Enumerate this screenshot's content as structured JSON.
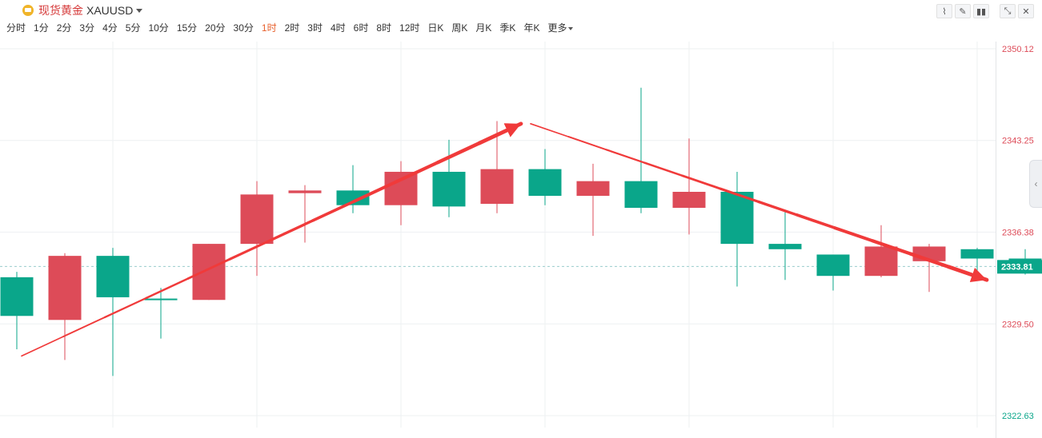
{
  "header": {
    "symbol_name": "现货黄金",
    "symbol_code": "XAUUSD",
    "gold_icon": "gold-coin-icon",
    "tools": [
      {
        "name": "indicator-icon",
        "glyph": "⌇"
      },
      {
        "name": "draw-icon",
        "glyph": "✎"
      },
      {
        "name": "candle-style-icon",
        "glyph": "▮▮"
      },
      {
        "name": "shrink-icon",
        "glyph": "⤡"
      },
      {
        "name": "close-icon",
        "glyph": "✕"
      }
    ]
  },
  "periods": [
    "分时",
    "1分",
    "2分",
    "3分",
    "4分",
    "5分",
    "10分",
    "15分",
    "20分",
    "30分",
    "1时",
    "2时",
    "3时",
    "4时",
    "6时",
    "8时",
    "12时",
    "日K",
    "周K",
    "月K",
    "季K",
    "年K"
  ],
  "active_period": "1时",
  "more_label": "更多",
  "colors": {
    "up": "#dd4b58",
    "down": "#0aa68a",
    "arrow": "#f03a3a",
    "price_line": "#9cc",
    "grid": "#eef0f2"
  },
  "chart_data": {
    "type": "candlestick",
    "y_ticks": [
      {
        "value": 2350.12,
        "label": "2350.12",
        "color": "#dd4b58"
      },
      {
        "value": 2343.25,
        "label": "2343.25",
        "color": "#dd4b58"
      },
      {
        "value": 2336.38,
        "label": "2336.38",
        "color": "#dd4b58"
      },
      {
        "value": 2329.5,
        "label": "2329.50",
        "color": "#dd4b58"
      },
      {
        "value": 2322.63,
        "label": "2322.63",
        "color": "#0aa68a"
      }
    ],
    "last_price": {
      "value": 2333.81,
      "label": "2333.81"
    },
    "candles": [
      {
        "o": 2333.0,
        "h": 2333.4,
        "l": 2327.6,
        "c": 2330.1
      },
      {
        "o": 2329.8,
        "h": 2334.8,
        "l": 2326.8,
        "c": 2334.6
      },
      {
        "o": 2334.6,
        "h": 2335.2,
        "l": 2325.6,
        "c": 2331.5
      },
      {
        "o": 2331.4,
        "h": 2332.2,
        "l": 2328.4,
        "c": 2331.3
      },
      {
        "o": 2331.3,
        "h": 2335.5,
        "l": 2331.3,
        "c": 2335.5
      },
      {
        "o": 2335.5,
        "h": 2340.2,
        "l": 2333.1,
        "c": 2339.2
      },
      {
        "o": 2339.3,
        "h": 2339.9,
        "l": 2335.6,
        "c": 2339.5
      },
      {
        "o": 2339.5,
        "h": 2341.4,
        "l": 2337.8,
        "c": 2338.4
      },
      {
        "o": 2338.4,
        "h": 2341.7,
        "l": 2336.9,
        "c": 2340.9
      },
      {
        "o": 2340.9,
        "h": 2343.3,
        "l": 2337.5,
        "c": 2338.3
      },
      {
        "o": 2338.5,
        "h": 2344.7,
        "l": 2337.8,
        "c": 2341.1
      },
      {
        "o": 2341.1,
        "h": 2342.6,
        "l": 2338.4,
        "c": 2339.1
      },
      {
        "o": 2339.1,
        "h": 2341.5,
        "l": 2336.1,
        "c": 2340.2
      },
      {
        "o": 2340.2,
        "h": 2347.2,
        "l": 2337.8,
        "c": 2338.2
      },
      {
        "o": 2338.2,
        "h": 2343.4,
        "l": 2336.2,
        "c": 2339.4
      },
      {
        "o": 2339.4,
        "h": 2340.9,
        "l": 2332.3,
        "c": 2335.5
      },
      {
        "o": 2335.5,
        "h": 2337.9,
        "l": 2332.8,
        "c": 2335.1
      },
      {
        "o": 2334.7,
        "h": 2334.7,
        "l": 2332.0,
        "c": 2333.1
      },
      {
        "o": 2333.1,
        "h": 2336.9,
        "l": 2333.0,
        "c": 2335.3
      },
      {
        "o": 2334.2,
        "h": 2335.5,
        "l": 2331.9,
        "c": 2335.3
      },
      {
        "o": 2335.1,
        "h": 2335.2,
        "l": 2333.2,
        "c": 2334.4
      },
      {
        "o": 2334.4,
        "h": 2335.1,
        "l": 2333.2,
        "c": 2333.8
      }
    ],
    "trend_arrows": [
      {
        "from": {
          "index": 0.1,
          "value": 2327.1
        },
        "to": {
          "index": 10.5,
          "value": 2344.5
        }
      },
      {
        "from": {
          "index": 10.7,
          "value": 2344.5
        },
        "to": {
          "index": 20.2,
          "value": 2332.8
        }
      }
    ]
  }
}
